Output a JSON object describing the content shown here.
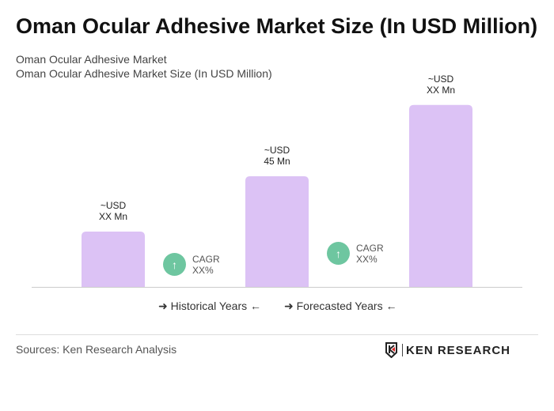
{
  "title": "Oman Ocular Adhesive Market Size (In USD Million)",
  "subtitle1": "Oman Ocular Adhesive Market",
  "subtitle2": "Oman Ocular Adhesive Market Size (In USD Million)",
  "chart_data": {
    "type": "bar",
    "categories": [
      "",
      "",
      ""
    ],
    "values": [
      22.5,
      45,
      74
    ],
    "data_labels": [
      [
        "~USD",
        "XX Mn"
      ],
      [
        "~USD",
        "45 Mn"
      ],
      [
        "~USD",
        "XX Mn"
      ]
    ],
    "bar_color": "#dcc2f5",
    "grid": false,
    "cagr": [
      {
        "label": "CAGR",
        "value": "XX%"
      },
      {
        "label": "CAGR",
        "value": "XX%"
      }
    ],
    "cagr_color": "#6ec6a0"
  },
  "legend": {
    "historical": "Historical Years",
    "forecasted": "Forecasted Years"
  },
  "sources": "Sources: Ken Research Analysis",
  "logo": "KEN RESEARCH"
}
